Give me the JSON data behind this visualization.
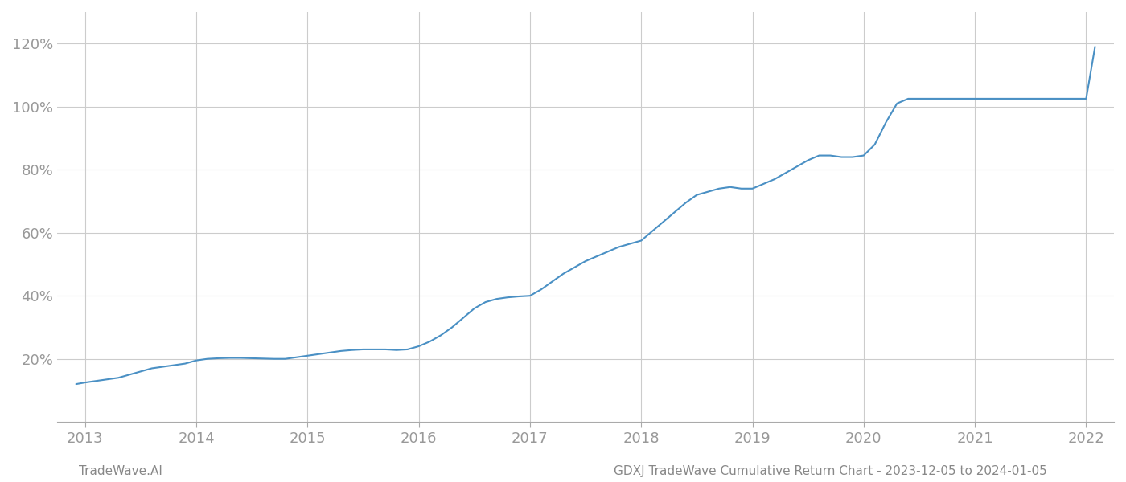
{
  "footer_left": "TradeWave.AI",
  "footer_right": "GDXJ TradeWave Cumulative Return Chart - 2023-12-05 to 2024-01-05",
  "line_color": "#4a90c4",
  "background_color": "#ffffff",
  "grid_color": "#cccccc",
  "footer_color": "#888888",
  "tick_color": "#999999",
  "x_values": [
    2012.92,
    2013.0,
    2013.1,
    2013.2,
    2013.3,
    2013.4,
    2013.5,
    2013.6,
    2013.7,
    2013.8,
    2013.9,
    2014.0,
    2014.1,
    2014.2,
    2014.3,
    2014.4,
    2014.5,
    2014.6,
    2014.7,
    2014.8,
    2014.9,
    2015.0,
    2015.1,
    2015.2,
    2015.3,
    2015.4,
    2015.5,
    2015.6,
    2015.7,
    2015.8,
    2015.9,
    2016.0,
    2016.1,
    2016.2,
    2016.3,
    2016.4,
    2016.5,
    2016.6,
    2016.7,
    2016.8,
    2016.9,
    2017.0,
    2017.1,
    2017.2,
    2017.3,
    2017.4,
    2017.5,
    2017.6,
    2017.7,
    2017.8,
    2017.9,
    2018.0,
    2018.1,
    2018.2,
    2018.3,
    2018.4,
    2018.5,
    2018.6,
    2018.7,
    2018.8,
    2018.9,
    2019.0,
    2019.1,
    2019.2,
    2019.3,
    2019.4,
    2019.5,
    2019.6,
    2019.7,
    2019.8,
    2019.9,
    2020.0,
    2020.1,
    2020.2,
    2020.3,
    2020.4,
    2020.5,
    2020.6,
    2020.7,
    2020.8,
    2020.9,
    2021.0,
    2021.1,
    2021.2,
    2021.3,
    2021.4,
    2021.5,
    2021.6,
    2021.7,
    2021.8,
    2021.9,
    2022.0,
    2022.08
  ],
  "y_values": [
    12,
    12.5,
    13.0,
    13.5,
    14.0,
    15.0,
    16.0,
    17.0,
    17.5,
    18.0,
    18.5,
    19.5,
    20.0,
    20.2,
    20.3,
    20.3,
    20.2,
    20.1,
    20.0,
    20.0,
    20.5,
    21.0,
    21.5,
    22.0,
    22.5,
    22.8,
    23.0,
    23.0,
    23.0,
    22.8,
    23.0,
    24.0,
    25.5,
    27.5,
    30.0,
    33.0,
    36.0,
    38.0,
    39.0,
    39.5,
    39.8,
    40.0,
    42.0,
    44.5,
    47.0,
    49.0,
    51.0,
    52.5,
    54.0,
    55.5,
    56.5,
    57.5,
    60.5,
    63.5,
    66.5,
    69.5,
    72.0,
    73.0,
    74.0,
    74.5,
    74.0,
    74.0,
    75.5,
    77.0,
    79.0,
    81.0,
    83.0,
    84.5,
    84.5,
    84.0,
    84.0,
    84.5,
    88.0,
    95.0,
    101.0,
    102.5,
    102.5,
    102.5,
    102.5,
    102.5,
    102.5,
    102.5,
    102.5,
    102.5,
    102.5,
    102.5,
    102.5,
    102.5,
    102.5,
    102.5,
    102.5,
    102.5,
    119.0
  ],
  "xlim": [
    2012.75,
    2022.25
  ],
  "ylim": [
    0,
    130
  ],
  "yticks": [
    20,
    40,
    60,
    80,
    100,
    120
  ],
  "xticks": [
    2013,
    2014,
    2015,
    2016,
    2017,
    2018,
    2019,
    2020,
    2021,
    2022
  ],
  "line_width": 1.5,
  "footer_fontsize": 11,
  "tick_fontsize": 13
}
